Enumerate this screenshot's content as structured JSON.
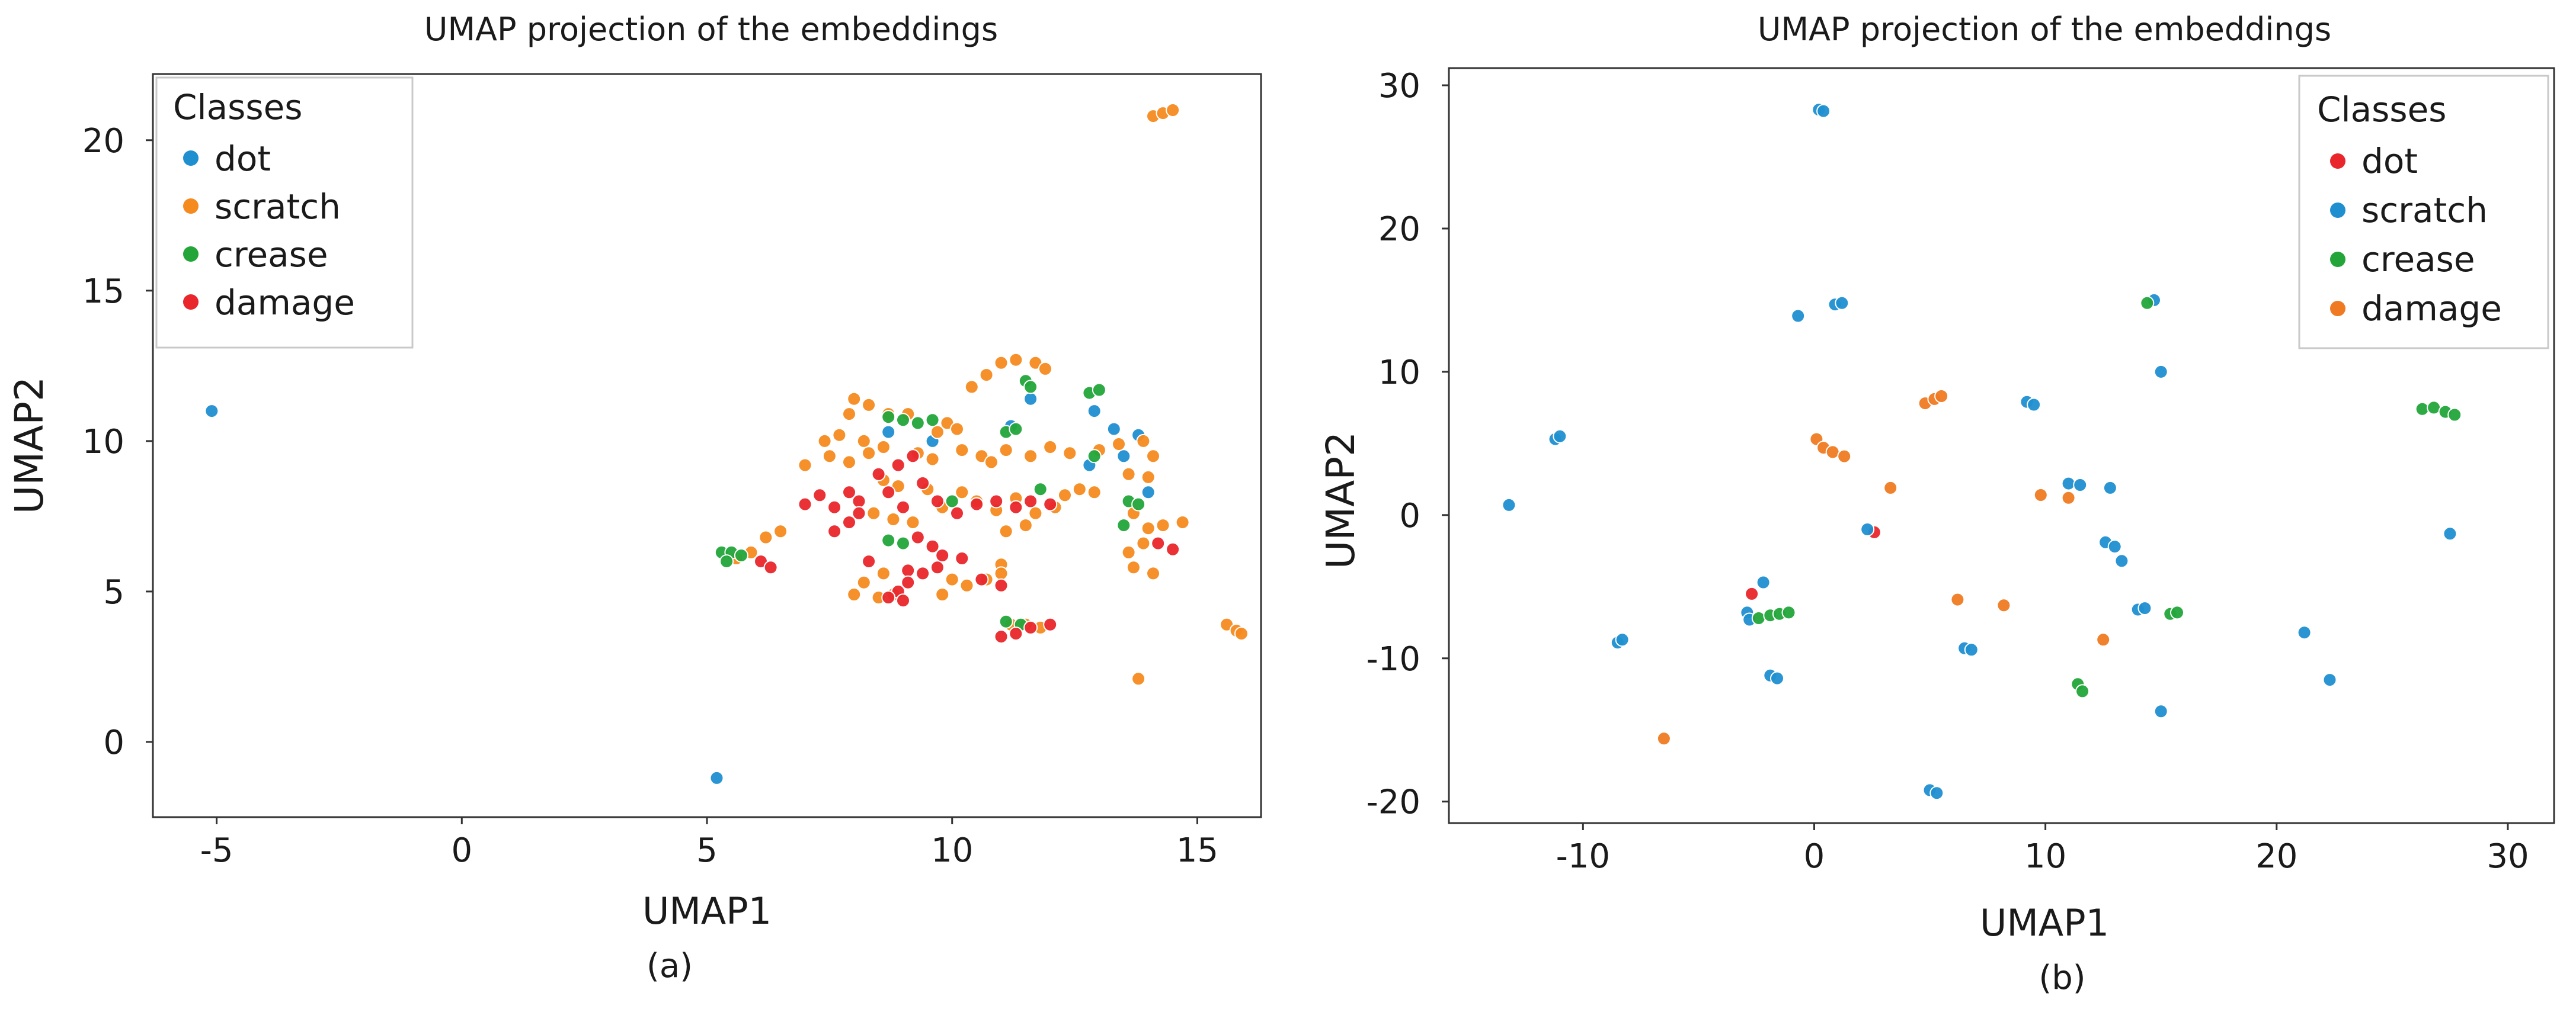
{
  "colors": {
    "blue": "#1f8fd0",
    "orange": "#f58a1f",
    "green": "#23a53a",
    "red": "#e8262b",
    "darkblue": "#1f6fb0",
    "orange_b": "#ef7a22"
  },
  "chart_data": [
    {
      "type": "scatter",
      "title": "UMAP projection of the embeddings",
      "xlabel": "UMAP1",
      "ylabel": "UMAP2",
      "caption": "(a)",
      "xlim": [
        -6.3,
        16.3
      ],
      "ylim": [
        -2.5,
        22.2
      ],
      "xticks": [
        -5,
        0,
        5,
        10,
        15
      ],
      "yticks": [
        0,
        5,
        10,
        15,
        20
      ],
      "legend": {
        "title": "Classes",
        "position": "top-left"
      },
      "series": [
        {
          "name": "dot",
          "color": "#1f8fd0",
          "points": [
            [
              -5.1,
              11.0
            ],
            [
              5.2,
              -1.2
            ],
            [
              9.6,
              10.0
            ],
            [
              11.2,
              10.5
            ],
            [
              11.6,
              11.4
            ],
            [
              12.9,
              11.0
            ],
            [
              13.3,
              10.4
            ],
            [
              13.8,
              10.2
            ],
            [
              13.5,
              9.5
            ],
            [
              14.0,
              8.3
            ],
            [
              12.8,
              9.2
            ],
            [
              8.7,
              10.3
            ]
          ]
        },
        {
          "name": "scratch",
          "color": "#f58a1f",
          "points": [
            [
              14.1,
              20.8
            ],
            [
              14.3,
              20.9
            ],
            [
              14.5,
              21.0
            ],
            [
              11.0,
              12.6
            ],
            [
              11.3,
              12.7
            ],
            [
              11.7,
              12.6
            ],
            [
              11.9,
              12.4
            ],
            [
              10.7,
              12.2
            ],
            [
              10.4,
              11.8
            ],
            [
              8.0,
              11.4
            ],
            [
              8.3,
              11.2
            ],
            [
              7.9,
              10.9
            ],
            [
              8.7,
              10.9
            ],
            [
              9.1,
              10.9
            ],
            [
              9.9,
              10.6
            ],
            [
              10.1,
              10.4
            ],
            [
              9.7,
              10.3
            ],
            [
              7.4,
              10.0
            ],
            [
              7.7,
              10.2
            ],
            [
              8.2,
              10.0
            ],
            [
              8.6,
              9.8
            ],
            [
              7.0,
              9.2
            ],
            [
              7.5,
              9.5
            ],
            [
              7.9,
              9.3
            ],
            [
              8.3,
              9.6
            ],
            [
              9.3,
              9.6
            ],
            [
              9.6,
              9.4
            ],
            [
              10.2,
              9.7
            ],
            [
              10.6,
              9.5
            ],
            [
              10.8,
              9.3
            ],
            [
              11.1,
              9.7
            ],
            [
              11.6,
              9.5
            ],
            [
              12.0,
              9.8
            ],
            [
              12.4,
              9.6
            ],
            [
              13.0,
              9.7
            ],
            [
              13.4,
              9.9
            ],
            [
              13.9,
              10.0
            ],
            [
              14.1,
              9.5
            ],
            [
              13.6,
              8.9
            ],
            [
              14.0,
              8.8
            ],
            [
              12.6,
              8.4
            ],
            [
              12.9,
              8.3
            ],
            [
              12.3,
              8.2
            ],
            [
              11.3,
              8.1
            ],
            [
              10.9,
              7.7
            ],
            [
              10.2,
              8.3
            ],
            [
              10.5,
              8.0
            ],
            [
              9.8,
              7.8
            ],
            [
              9.5,
              8.4
            ],
            [
              9.2,
              7.3
            ],
            [
              8.6,
              8.7
            ],
            [
              8.9,
              8.5
            ],
            [
              8.4,
              7.6
            ],
            [
              8.8,
              7.4
            ],
            [
              11.7,
              7.6
            ],
            [
              12.1,
              7.8
            ],
            [
              11.5,
              7.2
            ],
            [
              11.1,
              7.0
            ],
            [
              13.7,
              7.6
            ],
            [
              14.0,
              7.1
            ],
            [
              14.3,
              7.2
            ],
            [
              14.7,
              7.3
            ],
            [
              13.6,
              6.3
            ],
            [
              13.9,
              6.6
            ],
            [
              13.7,
              5.8
            ],
            [
              14.1,
              5.6
            ],
            [
              11.0,
              5.9
            ],
            [
              11.0,
              5.6
            ],
            [
              10.7,
              5.4
            ],
            [
              10.3,
              5.2
            ],
            [
              10.0,
              5.4
            ],
            [
              9.8,
              4.9
            ],
            [
              8.6,
              5.6
            ],
            [
              8.2,
              5.3
            ],
            [
              8.0,
              4.9
            ],
            [
              8.5,
              4.8
            ],
            [
              8.8,
              4.9
            ],
            [
              6.2,
              6.8
            ],
            [
              6.5,
              7.0
            ],
            [
              5.9,
              6.3
            ],
            [
              5.6,
              6.1
            ],
            [
              15.6,
              3.9
            ],
            [
              15.8,
              3.7
            ],
            [
              15.9,
              3.6
            ],
            [
              13.8,
              2.1
            ],
            [
              11.2,
              3.9
            ],
            [
              11.5,
              3.9
            ],
            [
              11.8,
              3.8
            ]
          ]
        },
        {
          "name": "crease",
          "color": "#23a53a",
          "points": [
            [
              5.3,
              6.3
            ],
            [
              5.5,
              6.3
            ],
            [
              5.7,
              6.2
            ],
            [
              5.4,
              6.0
            ],
            [
              8.7,
              10.8
            ],
            [
              9.0,
              10.7
            ],
            [
              9.3,
              10.6
            ],
            [
              9.6,
              10.7
            ],
            [
              11.1,
              10.3
            ],
            [
              11.3,
              10.4
            ],
            [
              11.5,
              12.0
            ],
            [
              11.6,
              11.8
            ],
            [
              12.8,
              11.6
            ],
            [
              13.0,
              11.7
            ],
            [
              12.9,
              9.5
            ],
            [
              13.6,
              8.0
            ],
            [
              13.8,
              7.9
            ],
            [
              11.8,
              8.4
            ],
            [
              10.0,
              8.0
            ],
            [
              8.7,
              6.7
            ],
            [
              9.0,
              6.6
            ],
            [
              13.5,
              7.2
            ],
            [
              11.1,
              4.0
            ],
            [
              11.4,
              3.9
            ]
          ]
        },
        {
          "name": "damage",
          "color": "#e8262b",
          "points": [
            [
              6.1,
              6.0
            ],
            [
              6.3,
              5.8
            ],
            [
              7.0,
              7.9
            ],
            [
              7.3,
              8.2
            ],
            [
              7.6,
              7.8
            ],
            [
              7.9,
              8.3
            ],
            [
              8.1,
              8.0
            ],
            [
              8.5,
              8.9
            ],
            [
              8.9,
              9.2
            ],
            [
              9.2,
              9.5
            ],
            [
              8.7,
              8.3
            ],
            [
              9.4,
              8.6
            ],
            [
              9.0,
              7.8
            ],
            [
              9.7,
              8.0
            ],
            [
              10.1,
              7.6
            ],
            [
              10.5,
              7.9
            ],
            [
              10.9,
              8.0
            ],
            [
              11.3,
              7.8
            ],
            [
              11.6,
              8.0
            ],
            [
              12.0,
              7.9
            ],
            [
              7.6,
              7.0
            ],
            [
              7.9,
              7.3
            ],
            [
              8.1,
              7.6
            ],
            [
              9.3,
              6.8
            ],
            [
              9.6,
              6.5
            ],
            [
              9.8,
              6.2
            ],
            [
              10.2,
              6.1
            ],
            [
              9.1,
              5.7
            ],
            [
              9.4,
              5.6
            ],
            [
              9.1,
              5.3
            ],
            [
              9.7,
              5.8
            ],
            [
              10.6,
              5.4
            ],
            [
              11.0,
              5.2
            ],
            [
              8.9,
              5.0
            ],
            [
              9.0,
              4.7
            ],
            [
              8.7,
              4.8
            ],
            [
              11.0,
              3.5
            ],
            [
              11.3,
              3.6
            ],
            [
              11.6,
              3.8
            ],
            [
              12.0,
              3.9
            ],
            [
              14.2,
              6.6
            ],
            [
              14.5,
              6.4
            ],
            [
              8.3,
              6.0
            ]
          ]
        }
      ]
    },
    {
      "type": "scatter",
      "title": "UMAP projection of the embeddings",
      "xlabel": "UMAP1",
      "ylabel": "UMAP2",
      "caption": "(b)",
      "xlim": [
        -15.8,
        32.0
      ],
      "ylim": [
        -21.5,
        31.2
      ],
      "xticks": [
        -10,
        0,
        10,
        20,
        30
      ],
      "yticks": [
        -20,
        -10,
        0,
        10,
        20,
        30
      ],
      "legend": {
        "title": "Classes",
        "position": "top-right"
      },
      "series": [
        {
          "name": "dot",
          "color": "#e8262b",
          "points": [
            [
              2.6,
              -1.2
            ],
            [
              -2.7,
              -5.5
            ]
          ]
        },
        {
          "name": "scratch",
          "color": "#1f8fd0",
          "points": [
            [
              0.2,
              28.3
            ],
            [
              0.4,
              28.2
            ],
            [
              -0.7,
              13.9
            ],
            [
              0.9,
              14.7
            ],
            [
              1.2,
              14.8
            ],
            [
              -11.2,
              5.3
            ],
            [
              -11.0,
              5.5
            ],
            [
              -13.2,
              0.7
            ],
            [
              9.2,
              7.9
            ],
            [
              9.5,
              7.7
            ],
            [
              11.0,
              2.2
            ],
            [
              11.5,
              2.1
            ],
            [
              12.8,
              1.9
            ],
            [
              12.6,
              -1.9
            ],
            [
              13.0,
              -2.2
            ],
            [
              13.3,
              -3.2
            ],
            [
              -2.2,
              -4.7
            ],
            [
              -2.9,
              -6.8
            ],
            [
              -2.8,
              -7.3
            ],
            [
              -8.5,
              -8.9
            ],
            [
              -8.3,
              -8.7
            ],
            [
              -1.9,
              -11.2
            ],
            [
              -1.6,
              -11.4
            ],
            [
              6.5,
              -9.3
            ],
            [
              6.8,
              -9.4
            ],
            [
              14.0,
              -6.6
            ],
            [
              14.3,
              -6.5
            ],
            [
              5.0,
              -19.2
            ],
            [
              5.3,
              -19.4
            ],
            [
              14.7,
              15.0
            ],
            [
              15.0,
              10.0
            ],
            [
              21.2,
              -8.2
            ],
            [
              22.3,
              -11.5
            ],
            [
              27.5,
              -1.3
            ],
            [
              15.0,
              -13.7
            ],
            [
              2.3,
              -1.0
            ]
          ]
        },
        {
          "name": "crease",
          "color": "#23a53a",
          "points": [
            [
              -2.4,
              -7.2
            ],
            [
              -1.9,
              -7.0
            ],
            [
              -1.5,
              -6.9
            ],
            [
              -1.1,
              -6.8
            ],
            [
              11.4,
              -11.8
            ],
            [
              11.6,
              -12.3
            ],
            [
              14.4,
              14.8
            ],
            [
              15.4,
              -6.9
            ],
            [
              15.7,
              -6.8
            ],
            [
              26.3,
              7.4
            ],
            [
              26.8,
              7.5
            ],
            [
              27.3,
              7.2
            ],
            [
              27.7,
              7.0
            ]
          ]
        },
        {
          "name": "damage",
          "color": "#ef7a22",
          "points": [
            [
              0.1,
              5.3
            ],
            [
              0.4,
              4.7
            ],
            [
              0.8,
              4.4
            ],
            [
              1.3,
              4.1
            ],
            [
              4.8,
              7.8
            ],
            [
              5.2,
              8.1
            ],
            [
              5.5,
              8.3
            ],
            [
              3.3,
              1.9
            ],
            [
              9.8,
              1.4
            ],
            [
              11.0,
              1.2
            ],
            [
              6.2,
              -5.9
            ],
            [
              8.2,
              -6.3
            ],
            [
              12.5,
              -8.7
            ],
            [
              -6.5,
              -15.6
            ]
          ]
        }
      ]
    }
  ]
}
